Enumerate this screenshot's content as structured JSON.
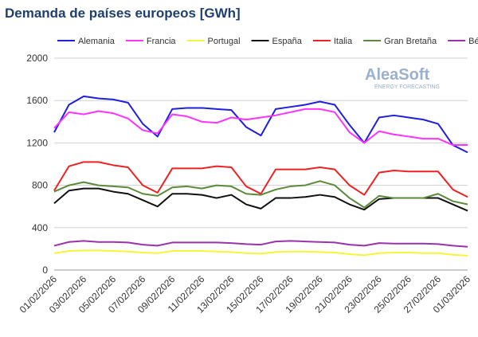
{
  "chart_data": {
    "type": "line",
    "title": "Demanda de países europeos [GWh]",
    "logo": {
      "name": "AleaSoft",
      "tagline": "ENERGY FORECASTING"
    },
    "categories": [
      "01/02/2026",
      null,
      "03/02/2026",
      null,
      "05/02/2026",
      null,
      "07/02/2026",
      null,
      "09/02/2026",
      null,
      "11/02/2026",
      null,
      "13/02/2026",
      null,
      "15/02/2026",
      null,
      "17/02/2026",
      null,
      "19/02/2026",
      null,
      "21/02/2026",
      null,
      "23/02/2026",
      null,
      "25/02/2026",
      null,
      "27/02/2026",
      null,
      "01/03/2026"
    ],
    "ylim": [
      0,
      2000
    ],
    "yticks": [
      0,
      400,
      800,
      1200,
      1600,
      2000
    ],
    "grid": true,
    "series": [
      {
        "name": "Alemania",
        "color": "#1f1fe0",
        "values": [
          1300,
          1560,
          1640,
          1620,
          1610,
          1580,
          1380,
          1260,
          1520,
          1530,
          1530,
          1520,
          1510,
          1350,
          1270,
          1520,
          1540,
          1560,
          1590,
          1560,
          1370,
          1200,
          1440,
          1460,
          1440,
          1420,
          1380,
          1180,
          1110
        ]
      },
      {
        "name": "Francia",
        "color": "#ff33ff",
        "values": [
          1340,
          1490,
          1470,
          1500,
          1480,
          1430,
          1320,
          1290,
          1470,
          1450,
          1400,
          1390,
          1440,
          1420,
          1440,
          1460,
          1490,
          1520,
          1520,
          1490,
          1300,
          1200,
          1310,
          1280,
          1260,
          1240,
          1240,
          1180,
          1180
        ]
      },
      {
        "name": "Portugal",
        "color": "#f5f53a",
        "values": [
          160,
          180,
          185,
          185,
          180,
          175,
          165,
          160,
          180,
          180,
          180,
          175,
          170,
          160,
          155,
          170,
          175,
          175,
          170,
          165,
          150,
          140,
          160,
          165,
          165,
          160,
          160,
          145,
          135
        ]
      },
      {
        "name": "España",
        "color": "#111111",
        "values": [
          630,
          750,
          770,
          770,
          740,
          720,
          660,
          600,
          720,
          720,
          710,
          680,
          710,
          620,
          580,
          680,
          680,
          690,
          710,
          690,
          620,
          570,
          670,
          680,
          680,
          680,
          680,
          620,
          560
        ]
      },
      {
        "name": "Italia",
        "color": "#ee2222",
        "values": [
          750,
          980,
          1020,
          1020,
          990,
          970,
          800,
          730,
          960,
          960,
          960,
          980,
          970,
          790,
          720,
          950,
          950,
          950,
          970,
          950,
          800,
          710,
          920,
          940,
          930,
          930,
          930,
          760,
          690
        ]
      },
      {
        "name": "Gran Bretaña",
        "color": "#5a8a3a",
        "values": [
          740,
          800,
          830,
          800,
          790,
          780,
          720,
          700,
          780,
          790,
          770,
          800,
          790,
          720,
          710,
          760,
          790,
          800,
          840,
          800,
          680,
          590,
          700,
          680,
          680,
          680,
          720,
          650,
          620
        ]
      },
      {
        "name": "Bélgica",
        "color": "#9933aa",
        "values": [
          230,
          265,
          275,
          265,
          265,
          260,
          240,
          230,
          260,
          260,
          260,
          260,
          255,
          245,
          240,
          270,
          275,
          270,
          265,
          260,
          240,
          230,
          255,
          250,
          250,
          250,
          245,
          230,
          220
        ]
      }
    ]
  }
}
